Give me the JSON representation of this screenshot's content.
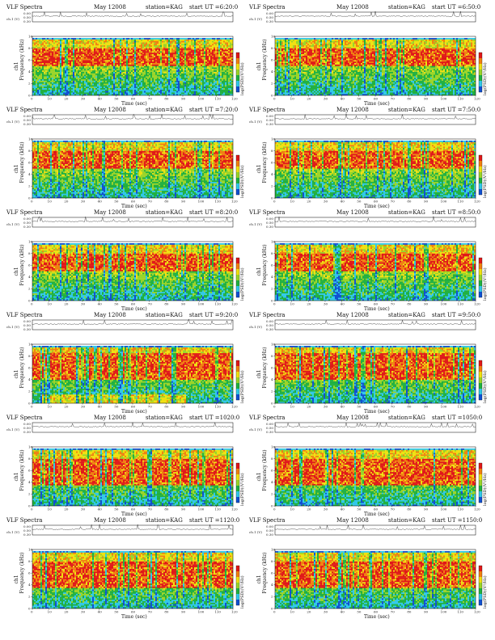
{
  "colors": {
    "background": "#ffffff",
    "blue": "#1050d0",
    "cyan": "#30c8e8",
    "green": "#20b040",
    "lime": "#9ad428",
    "yellow": "#f0e010",
    "orange": "#f08010",
    "red": "#e01818",
    "trace": "#222222"
  },
  "common": {
    "title": "VLF Spectra",
    "date": "May 12008",
    "station": "station=KAG",
    "ut_prefix": "start UT =",
    "xlabel": "Time  (sec)",
    "ylabel": "Frequency (kHz)",
    "ch_label": "ch.1 (V)",
    "ch1_label": "ch1",
    "cbar_label": "log(PSD)(V²/Hz)"
  },
  "chart_data": [
    {
      "type": "heatmap",
      "start_ut": "6:20:0",
      "ylim": [
        0,
        10
      ],
      "xlim": [
        0,
        120
      ],
      "x_ticks": [
        "0",
        "10",
        "20",
        "30",
        "40",
        "50",
        "60",
        "70",
        "80",
        "90",
        "100",
        "110",
        "120"
      ],
      "y_ticks": [
        "0",
        "2",
        "4",
        "6",
        "8",
        "10"
      ],
      "ch_ticks": [
        "0.00",
        "0.50",
        "0.30"
      ],
      "signal_band_khz": [
        5,
        8
      ],
      "noise_cutoff_khz": 9.5,
      "low_band": false
    },
    {
      "type": "heatmap",
      "start_ut": "6:50:0",
      "ylim": [
        0,
        10
      ],
      "xlim": [
        0,
        120
      ],
      "x_ticks": [
        "0",
        "10",
        "20",
        "30",
        "40",
        "50",
        "60",
        "70",
        "80",
        "90",
        "100",
        "110",
        "120"
      ],
      "y_ticks": [
        "0",
        "2",
        "4",
        "6",
        "8",
        "10"
      ],
      "ch_ticks": [
        "0.00",
        "0.50",
        "0.30"
      ],
      "signal_band_khz": [
        5,
        8
      ],
      "noise_cutoff_khz": 9.5,
      "low_band": false
    },
    {
      "type": "heatmap",
      "start_ut": "7:20:0",
      "ylim": [
        0,
        10
      ],
      "xlim": [
        0,
        120
      ],
      "x_ticks": [
        "0",
        "10",
        "20",
        "30",
        "40",
        "50",
        "60",
        "70",
        "80",
        "90",
        "100",
        "110",
        "120"
      ],
      "y_ticks": [
        "0",
        "2",
        "4",
        "6",
        "8",
        "10"
      ],
      "ch_ticks": [
        "0.00",
        "0.50",
        "0.30"
      ],
      "signal_band_khz": [
        5,
        8
      ],
      "noise_cutoff_khz": 9.5,
      "low_band": false
    },
    {
      "type": "heatmap",
      "start_ut": "7:50:0",
      "ylim": [
        0,
        10
      ],
      "xlim": [
        0,
        120
      ],
      "x_ticks": [
        "0",
        "10",
        "20",
        "30",
        "40",
        "50",
        "60",
        "70",
        "80",
        "90",
        "100",
        "110",
        "120"
      ],
      "y_ticks": [
        "0",
        "2",
        "4",
        "6",
        "8",
        "10"
      ],
      "ch_ticks": [
        "0.00",
        "0.50",
        "0.30"
      ],
      "signal_band_khz": [
        5,
        8
      ],
      "noise_cutoff_khz": 9.5,
      "low_band": false
    },
    {
      "type": "heatmap",
      "start_ut": "8:20:0",
      "ylim": [
        0,
        10
      ],
      "xlim": [
        0,
        120
      ],
      "x_ticks": [
        "0",
        "10",
        "20",
        "30",
        "40",
        "50",
        "60",
        "70",
        "80",
        "90",
        "100",
        "110",
        "120"
      ],
      "y_ticks": [
        "0",
        "2",
        "4",
        "6",
        "8",
        "10"
      ],
      "ch_ticks": [
        "0.00",
        "0.50",
        "0.30"
      ],
      "signal_band_khz": [
        5,
        8
      ],
      "noise_cutoff_khz": 9.5,
      "low_band": false
    },
    {
      "type": "heatmap",
      "start_ut": "8:50:0",
      "ylim": [
        0,
        10
      ],
      "xlim": [
        0,
        120
      ],
      "x_ticks": [
        "0",
        "10",
        "20",
        "30",
        "40",
        "50",
        "60",
        "70",
        "80",
        "90",
        "100",
        "110",
        "120"
      ],
      "y_ticks": [
        "0",
        "2",
        "4",
        "6",
        "8",
        "10"
      ],
      "ch_ticks": [
        "0.00",
        "0.50",
        "0.30"
      ],
      "signal_band_khz": [
        5,
        8
      ],
      "noise_cutoff_khz": 9.5,
      "low_band": false
    },
    {
      "type": "heatmap",
      "start_ut": "9:20:0",
      "ylim": [
        0,
        10
      ],
      "xlim": [
        0,
        120
      ],
      "x_ticks": [
        "0",
        "10",
        "20",
        "30",
        "40",
        "50",
        "60",
        "70",
        "80",
        "90",
        "100",
        "110",
        "120"
      ],
      "y_ticks": [
        "0",
        "2",
        "4",
        "6",
        "8",
        "10"
      ],
      "ch_ticks": [
        "0.00",
        "0.50",
        "0.30"
      ],
      "signal_band_khz": [
        4,
        8.5
      ],
      "noise_cutoff_khz": 9.5,
      "low_band": true
    },
    {
      "type": "heatmap",
      "start_ut": "9:50:0",
      "ylim": [
        0,
        10
      ],
      "xlim": [
        0,
        120
      ],
      "x_ticks": [
        "0",
        "10",
        "20",
        "30",
        "40",
        "50",
        "60",
        "70",
        "80",
        "90",
        "100",
        "110",
        "120"
      ],
      "y_ticks": [
        "0",
        "2",
        "4",
        "6",
        "8",
        "10"
      ],
      "ch_ticks": [
        "0.00",
        "0.50",
        "0.30"
      ],
      "signal_band_khz": [
        4,
        8.5
      ],
      "noise_cutoff_khz": 9.5,
      "low_band": false
    },
    {
      "type": "heatmap",
      "start_ut": "1020:0",
      "ylim": [
        0,
        10
      ],
      "xlim": [
        0,
        120
      ],
      "x_ticks": [
        "0",
        "10",
        "20",
        "30",
        "40",
        "50",
        "60",
        "70",
        "80",
        "90",
        "100",
        "110",
        "120"
      ],
      "y_ticks": [
        "0",
        "2",
        "4",
        "6",
        "8",
        "10"
      ],
      "ch_ticks": [
        "0.00",
        "0.50",
        "0.30"
      ],
      "signal_band_khz": [
        3.5,
        8
      ],
      "noise_cutoff_khz": 9.5,
      "low_band": false
    },
    {
      "type": "heatmap",
      "start_ut": "1050:0",
      "ylim": [
        0,
        10
      ],
      "xlim": [
        0,
        120
      ],
      "x_ticks": [
        "0",
        "10",
        "20",
        "30",
        "40",
        "50",
        "60",
        "70",
        "80",
        "90",
        "100",
        "110",
        "120"
      ],
      "y_ticks": [
        "0",
        "2",
        "4",
        "6",
        "8",
        "10"
      ],
      "ch_ticks": [
        "0.00",
        "0.50",
        "0.30"
      ],
      "signal_band_khz": [
        3.5,
        8
      ],
      "noise_cutoff_khz": 9.5,
      "low_band": false
    },
    {
      "type": "heatmap",
      "start_ut": "1120:0",
      "ylim": [
        0,
        10
      ],
      "xlim": [
        0,
        120
      ],
      "x_ticks": [
        "0",
        "10",
        "20",
        "30",
        "40",
        "50",
        "60",
        "70",
        "80",
        "90",
        "100",
        "110",
        "120"
      ],
      "y_ticks": [
        "0",
        "2",
        "4",
        "6",
        "8",
        "10"
      ],
      "ch_ticks": [
        "0.00",
        "0.50",
        "0.30"
      ],
      "signal_band_khz": [
        3.5,
        8
      ],
      "noise_cutoff_khz": 9.5,
      "low_band": false
    },
    {
      "type": "heatmap",
      "start_ut": "1150:0",
      "ylim": [
        0,
        10
      ],
      "xlim": [
        0,
        120
      ],
      "x_ticks": [
        "0",
        "10",
        "20",
        "30",
        "40",
        "50",
        "60",
        "70",
        "80",
        "90",
        "100",
        "110",
        "120"
      ],
      "y_ticks": [
        "0",
        "2",
        "4",
        "6",
        "8",
        "10"
      ],
      "ch_ticks": [
        "0.00",
        "0.50",
        "0.30"
      ],
      "signal_band_khz": [
        3.5,
        8
      ],
      "noise_cutoff_khz": 9.5,
      "low_band": false
    }
  ]
}
